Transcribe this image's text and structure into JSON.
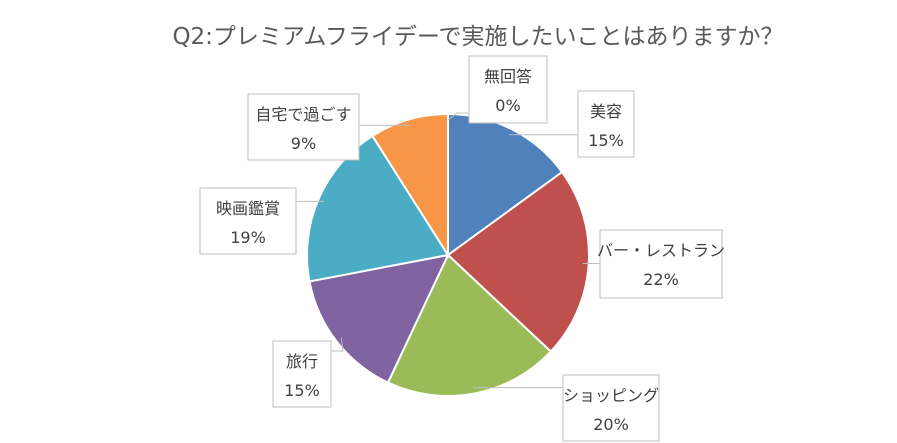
{
  "chart_data": {
    "type": "pie",
    "title": "Q2:プレミアムフライデーで実施したいことはありますか？",
    "slices": [
      {
        "label": "美容",
        "value": 15,
        "value_label": "15%",
        "color": "#4f81bd"
      },
      {
        "label": "バー・レストラン",
        "value": 22,
        "value_label": "22%",
        "color": "#c0504d"
      },
      {
        "label": "ショッピング",
        "value": 20,
        "value_label": "20%",
        "color": "#9bbb59"
      },
      {
        "label": "旅行",
        "value": 15,
        "value_label": "15%",
        "color": "#8064a2"
      },
      {
        "label": "映画鑑賞",
        "value": 19,
        "value_label": "19%",
        "color": "#4bacc6"
      },
      {
        "label": "自宅で過ごす",
        "value": 9,
        "value_label": "9%",
        "color": "#f79646"
      },
      {
        "label": "無回答",
        "value": 0,
        "value_label": "0%",
        "color": "#a5a5a5"
      }
    ],
    "legend": "none",
    "start_angle": "12 o'clock",
    "direction": "clockwise"
  }
}
